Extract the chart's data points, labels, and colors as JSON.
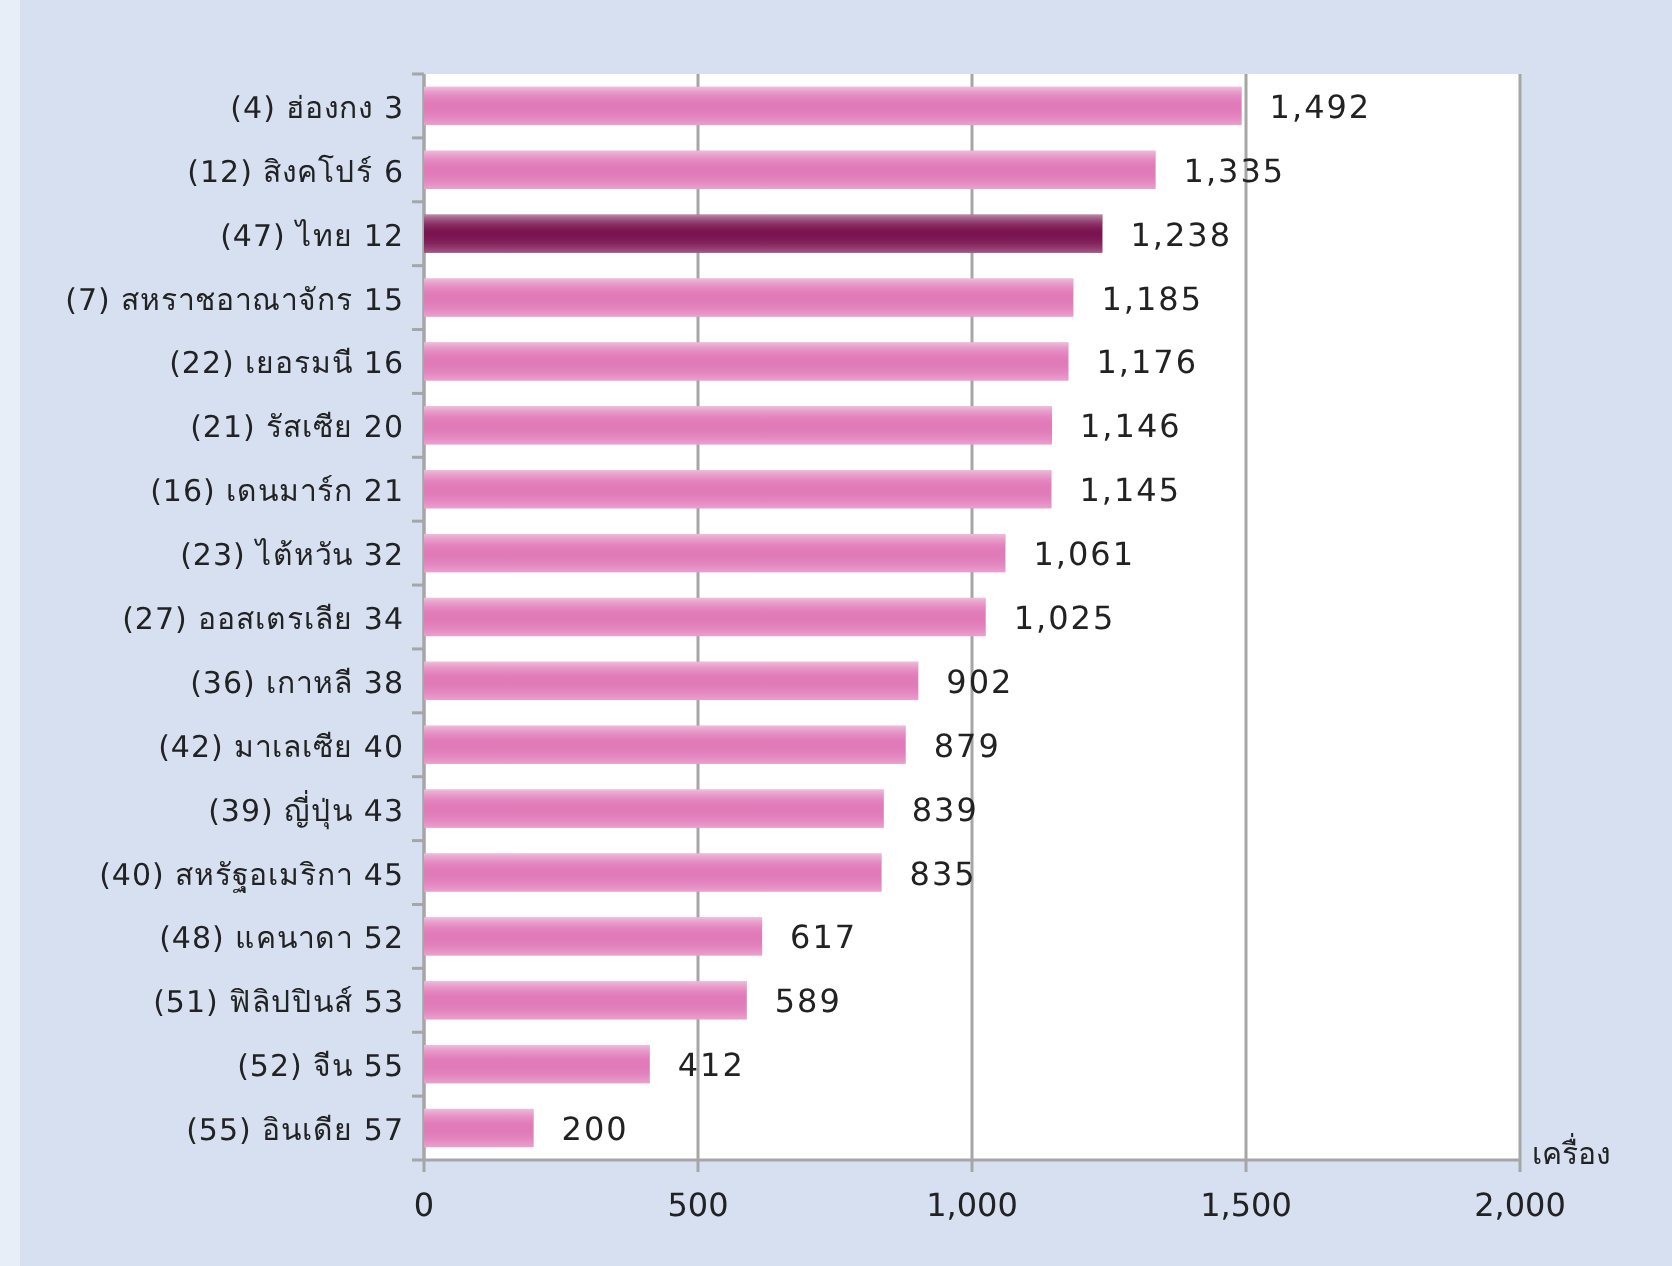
{
  "chart_data": {
    "type": "bar",
    "orientation": "horizontal",
    "xlabel": "เครื่อง",
    "categories": [
      "(4) ฮ่องกง 3",
      "(12) สิงคโปร์ 6",
      "(47) ไทย 12",
      "(7) สหราชอาณาจักร 15",
      "(22) เยอรมนี 16",
      "(21) รัสเซีย 20",
      "(16) เดนมาร์ก 21",
      "(23) ไต้หวัน 32",
      "(27) ออสเตรเลีย 34",
      "(36) เกาหลี 38",
      "(42) มาเลเซีย 40",
      "(39) ญี่ปุ่น 43",
      "(40) สหรัฐอเมริกา 45",
      "(48) แคนาดา 52",
      "(51) ฟิลิปปินส์ 53",
      "(52) จีน 55",
      "(55) อินเดีย 57"
    ],
    "values": [
      1492,
      1335,
      1238,
      1185,
      1176,
      1146,
      1145,
      1061,
      1025,
      902,
      879,
      839,
      835,
      617,
      589,
      412,
      200
    ],
    "colors": [
      "#e07ab8",
      "#e07ab8",
      "#7a1450",
      "#e07ab8",
      "#e07ab8",
      "#e07ab8",
      "#e07ab8",
      "#e07ab8",
      "#e07ab8",
      "#e07ab8",
      "#e07ab8",
      "#e07ab8",
      "#e07ab8",
      "#e07ab8",
      "#e07ab8",
      "#e07ab8",
      "#e07ab8"
    ],
    "value_labels": [
      "1,492",
      "1,335",
      "1,238",
      "1,185",
      "1,176",
      "1,146",
      "1,145",
      "1,061",
      "1,025",
      "902",
      "879",
      "839",
      "835",
      "617",
      "589",
      "412",
      "200"
    ],
    "xlim": [
      0,
      2000
    ],
    "xticks": [
      0,
      500,
      {
        "value": 1000,
        "label": "1,000"
      },
      {
        "value": 1500,
        "label": "1,500"
      },
      {
        "value": 2000,
        "label": "2,000"
      }
    ],
    "grid": "x"
  }
}
